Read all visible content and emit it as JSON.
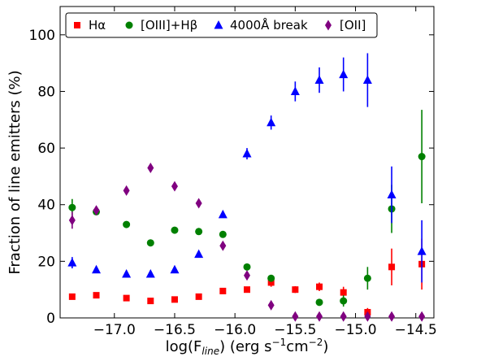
{
  "chart_data": {
    "type": "scatter",
    "xlabel": "log(F_line) (erg s⁻¹cm⁻²)",
    "xlabel_parts": {
      "prefix": "log(F",
      "sub": "line",
      "suffix": ") (erg s",
      "sup1": "−1",
      "mid": "cm",
      "sup2": "−2",
      "end": ")"
    },
    "ylabel": "Fraction of line emitters (%)",
    "xlim": [
      -17.45,
      -14.35
    ],
    "ylim": [
      0,
      110
    ],
    "xticks": [
      -17.0,
      -16.5,
      -16.0,
      -15.5,
      -15.0,
      -14.5
    ],
    "xtick_labels": [
      "−17.0",
      "−16.5",
      "−16.0",
      "−15.5",
      "−15.0",
      "−14.5"
    ],
    "yticks": [
      0,
      20,
      40,
      60,
      80,
      100
    ],
    "ytick_labels": [
      "0",
      "20",
      "40",
      "60",
      "80",
      "100"
    ],
    "grid": false,
    "legend_position": "top",
    "series": [
      {
        "name": "Hα",
        "color": "#ff0000",
        "marker": "square",
        "points": [
          {
            "x": -17.35,
            "y": 7.5
          },
          {
            "x": -17.15,
            "y": 8.0
          },
          {
            "x": -16.9,
            "y": 7.0
          },
          {
            "x": -16.7,
            "y": 6.0
          },
          {
            "x": -16.5,
            "y": 6.5
          },
          {
            "x": -16.3,
            "y": 7.5
          },
          {
            "x": -16.1,
            "y": 9.5
          },
          {
            "x": -15.9,
            "y": 10.0
          },
          {
            "x": -15.7,
            "y": 12.5,
            "err": 1.5
          },
          {
            "x": -15.5,
            "y": 10.0,
            "err": 1.2
          },
          {
            "x": -15.3,
            "y": 11.0,
            "err": 1.5
          },
          {
            "x": -15.1,
            "y": 9.0,
            "err": 2.0
          },
          {
            "x": -14.9,
            "y": 2.0,
            "err": 1.5
          },
          {
            "x": -14.7,
            "y": 18.0,
            "err": 6.5
          },
          {
            "x": -14.45,
            "y": 19.0,
            "err": 9.0
          }
        ]
      },
      {
        "name": "[OIII]+Hβ",
        "color": "#008000",
        "marker": "circle",
        "points": [
          {
            "x": -17.35,
            "y": 39.0,
            "err": 3.0
          },
          {
            "x": -17.15,
            "y": 37.5
          },
          {
            "x": -16.9,
            "y": 33.0
          },
          {
            "x": -16.7,
            "y": 26.5
          },
          {
            "x": -16.5,
            "y": 31.0
          },
          {
            "x": -16.3,
            "y": 30.5
          },
          {
            "x": -16.1,
            "y": 29.5
          },
          {
            "x": -15.9,
            "y": 18.0
          },
          {
            "x": -15.7,
            "y": 14.0
          },
          {
            "x": -15.3,
            "y": 5.5
          },
          {
            "x": -15.1,
            "y": 6.0,
            "err": 2.0
          },
          {
            "x": -14.9,
            "y": 14.0,
            "err": 4.0
          },
          {
            "x": -14.7,
            "y": 38.5,
            "err": 8.5
          },
          {
            "x": -14.45,
            "y": 57.0,
            "err": 16.5
          }
        ]
      },
      {
        "name": "4000Å break",
        "color": "#0000ff",
        "marker": "triangle",
        "points": [
          {
            "x": -17.35,
            "y": 19.5,
            "err": 2.0
          },
          {
            "x": -17.15,
            "y": 17.0
          },
          {
            "x": -16.9,
            "y": 15.5
          },
          {
            "x": -16.7,
            "y": 15.5
          },
          {
            "x": -16.5,
            "y": 17.0
          },
          {
            "x": -16.3,
            "y": 22.5
          },
          {
            "x": -16.1,
            "y": 36.5
          },
          {
            "x": -15.9,
            "y": 58.0,
            "err": 2.0
          },
          {
            "x": -15.7,
            "y": 69.0,
            "err": 2.5
          },
          {
            "x": -15.5,
            "y": 80.0,
            "err": 3.5
          },
          {
            "x": -15.3,
            "y": 84.0,
            "err": 4.5
          },
          {
            "x": -15.1,
            "y": 86.0,
            "err": 6.0
          },
          {
            "x": -14.9,
            "y": 84.0,
            "err": 9.5
          },
          {
            "x": -14.7,
            "y": 43.5,
            "err": 10.0
          },
          {
            "x": -14.45,
            "y": 23.5,
            "err": 11.0
          }
        ]
      },
      {
        "name": "[OII]",
        "color": "#800080",
        "marker": "diamond",
        "points": [
          {
            "x": -17.35,
            "y": 34.5,
            "err": 3.0
          },
          {
            "x": -17.15,
            "y": 38.0
          },
          {
            "x": -16.9,
            "y": 45.0
          },
          {
            "x": -16.7,
            "y": 53.0
          },
          {
            "x": -16.5,
            "y": 46.5
          },
          {
            "x": -16.3,
            "y": 40.5
          },
          {
            "x": -16.1,
            "y": 25.5
          },
          {
            "x": -15.9,
            "y": 15.0
          },
          {
            "x": -15.7,
            "y": 4.5
          },
          {
            "x": -15.5,
            "y": 0.5
          },
          {
            "x": -15.3,
            "y": 0.5
          },
          {
            "x": -15.1,
            "y": 0.5
          },
          {
            "x": -14.9,
            "y": 0.5
          },
          {
            "x": -14.7,
            "y": 0.5
          },
          {
            "x": -14.45,
            "y": 0.5
          }
        ]
      }
    ]
  }
}
